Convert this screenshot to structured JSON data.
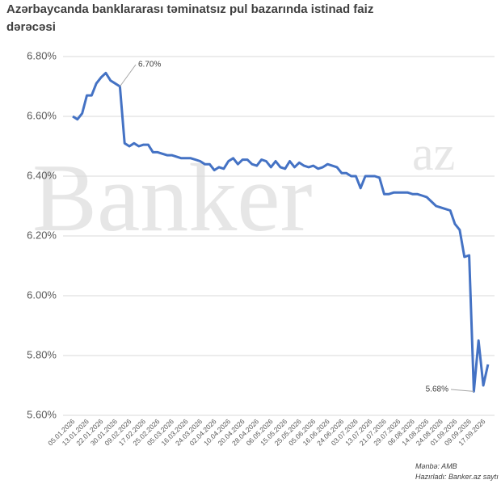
{
  "chart_data": {
    "type": "line",
    "title": "Azərbaycanda banklararası təminatsız pul bazarında istinad faiz",
    "title_line2": "dərəcəsi",
    "watermark": "Banker",
    "watermark_sup": "az",
    "source": "Mənbə: AMB",
    "credit": "Hazırladı: Banker.az saytı",
    "categories": [
      "05.01.2026",
      null,
      null,
      "13.01.2026",
      null,
      null,
      "22.01.2026",
      null,
      null,
      "30.01.2026",
      null,
      null,
      "09.02.2026",
      null,
      null,
      "17.02.2026",
      null,
      null,
      "25.02.2026",
      null,
      null,
      "05.03.2026",
      null,
      null,
      "16.03.2026",
      null,
      null,
      "24.03.2026",
      null,
      null,
      "02.04.2026",
      null,
      null,
      "10.04.2026",
      null,
      null,
      "20.04.2026",
      null,
      null,
      "28.04.2026",
      null,
      null,
      "06.05.2026",
      null,
      null,
      "15.05.2026",
      null,
      null,
      "25.05.2026",
      null,
      null,
      "05.06.2026",
      null,
      null,
      "16.06.2026",
      null,
      null,
      "24.06.2026",
      null,
      null,
      "03.07.2026",
      null,
      null,
      "13.07.2026",
      null,
      null,
      "21.07.2026",
      null,
      null,
      "29.07.2026",
      null,
      null,
      "06.08.2026",
      null,
      null,
      "14.08.2026",
      null,
      null,
      "24.08.2026",
      null,
      null,
      "01.09.2026",
      null,
      null,
      "09.09.2026",
      null,
      null,
      "17.09.2026",
      null
    ],
    "series": [
      {
        "name": "Istinad faiz",
        "color": "#4472c4",
        "values": [
          6.6,
          6.59,
          6.61,
          6.67,
          6.67,
          6.71,
          6.73,
          6.745,
          6.72,
          6.71,
          6.7,
          6.51,
          6.5,
          6.51,
          6.5,
          6.505,
          6.505,
          6.48,
          6.48,
          6.475,
          6.47,
          6.47,
          6.465,
          6.46,
          6.46,
          6.46,
          6.455,
          6.45,
          6.44,
          6.44,
          6.42,
          6.43,
          6.425,
          6.45,
          6.46,
          6.44,
          6.455,
          6.455,
          6.44,
          6.435,
          6.455,
          6.45,
          6.43,
          6.45,
          6.43,
          6.425,
          6.45,
          6.43,
          6.445,
          6.435,
          6.43,
          6.435,
          6.425,
          6.43,
          6.44,
          6.435,
          6.43,
          6.41,
          6.41,
          6.4,
          6.4,
          6.36,
          6.4,
          6.4,
          6.4,
          6.395,
          6.34,
          6.34,
          6.345,
          6.345,
          6.345,
          6.345,
          6.34,
          6.34,
          6.335,
          6.33,
          6.315,
          6.3,
          6.295,
          6.29,
          6.285,
          6.24,
          6.22,
          6.13,
          6.135,
          5.68,
          5.85,
          5.7,
          5.77
        ]
      }
    ],
    "annotations": [
      "6.70%",
      "5.68%"
    ],
    "ylim": [
      5.6,
      6.8
    ],
    "yticks": [
      {
        "value": 5.6,
        "label": "5.60%"
      },
      {
        "value": 5.8,
        "label": "5.80%"
      },
      {
        "value": 6.0,
        "label": "6.00%"
      },
      {
        "value": 6.2,
        "label": "6.20%"
      },
      {
        "value": 6.4,
        "label": "6.40%"
      },
      {
        "value": 6.6,
        "label": "6.60%"
      },
      {
        "value": 6.8,
        "label": "6.80%"
      }
    ],
    "grid": true
  }
}
